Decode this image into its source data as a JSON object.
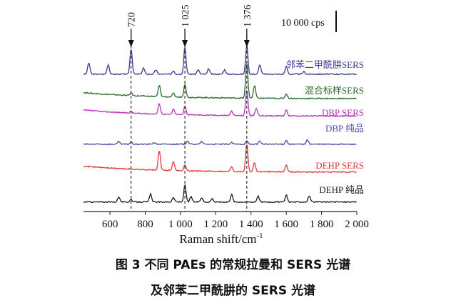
{
  "chart_data": {
    "type": "line",
    "xlabel": "Raman shift/cm",
    "xlabel_sup": "-1",
    "ylabel": "",
    "xlim": [
      450,
      2000
    ],
    "xticks": [
      600,
      800,
      1000,
      1200,
      1400,
      1600,
      1800,
      2000
    ],
    "xtick_labels": [
      "600",
      "800",
      "1 000",
      "1 200",
      "1 400",
      "1 600",
      "1 800",
      "2 000"
    ],
    "scale_bar_label": "10 000 cps",
    "markers": [
      {
        "x": 720,
        "label": "720"
      },
      {
        "x": 1025,
        "label": "1 025"
      },
      {
        "x": 1376,
        "label": "1 376"
      }
    ],
    "series": [
      {
        "name": "邻苯二甲酰肼SERS",
        "color": "#3b3b8f",
        "offset": 7.6,
        "peaks": [
          [
            480,
            0.65
          ],
          [
            590,
            0.55
          ],
          [
            720,
            1.45
          ],
          [
            790,
            0.35
          ],
          [
            860,
            0.25
          ],
          [
            960,
            0.2
          ],
          [
            1025,
            1.55
          ],
          [
            1100,
            0.25
          ],
          [
            1160,
            0.3
          ],
          [
            1250,
            0.25
          ],
          [
            1376,
            1.65
          ],
          [
            1450,
            0.55
          ],
          [
            1600,
            0.45
          ],
          [
            1700,
            0.15
          ]
        ]
      },
      {
        "name": "混合标样SERS",
        "color": "#2a6a2a",
        "offset": 6.2,
        "peaks": [
          [
            720,
            0.15
          ],
          [
            880,
            0.65
          ],
          [
            960,
            0.2
          ],
          [
            1025,
            0.75
          ],
          [
            1376,
            2.0
          ],
          [
            1420,
            0.7
          ],
          [
            1600,
            0.25
          ]
        ]
      },
      {
        "name": "DBP  SERS",
        "color": "#b535b5",
        "offset": 5.2,
        "peaks": [
          [
            720,
            0.1
          ],
          [
            880,
            0.6
          ],
          [
            960,
            0.3
          ],
          [
            1025,
            0.5
          ],
          [
            1290,
            0.25
          ],
          [
            1376,
            1.5
          ],
          [
            1430,
            0.4
          ],
          [
            1600,
            0.35
          ]
        ]
      },
      {
        "name": "DBP  纯品",
        "color": "#4a4aa8",
        "offset": 3.6,
        "peaks": [
          [
            650,
            0.15
          ],
          [
            720,
            0.12
          ],
          [
            850,
            0.1
          ],
          [
            1040,
            0.2
          ],
          [
            1120,
            0.15
          ],
          [
            1290,
            0.1
          ],
          [
            1376,
            0.18
          ],
          [
            1450,
            0.2
          ],
          [
            1600,
            0.22
          ],
          [
            1720,
            0.25
          ]
        ]
      },
      {
        "name": "DEHP  SERS",
        "color": "#e03a3a",
        "offset": 2.0,
        "peaks": [
          [
            880,
            1.1
          ],
          [
            960,
            0.5
          ],
          [
            1025,
            0.35
          ],
          [
            1290,
            0.3
          ],
          [
            1376,
            1.6
          ],
          [
            1420,
            0.5
          ],
          [
            1600,
            0.4
          ]
        ]
      },
      {
        "name": "DEHP  纯品",
        "color": "#1a1a1a",
        "offset": 0.3,
        "peaks": [
          [
            650,
            0.3
          ],
          [
            720,
            0.15
          ],
          [
            830,
            0.45
          ],
          [
            960,
            0.25
          ],
          [
            1025,
            0.95
          ],
          [
            1060,
            0.3
          ],
          [
            1120,
            0.25
          ],
          [
            1180,
            0.2
          ],
          [
            1290,
            0.45
          ],
          [
            1440,
            0.35
          ],
          [
            1600,
            0.4
          ],
          [
            1730,
            0.35
          ]
        ]
      }
    ]
  },
  "caption": {
    "line1": "图 3   不同 PAEs 的常规拉曼和 SERS 光谱",
    "line2": "及邻苯二甲酰肼的 SERS 光谱"
  }
}
